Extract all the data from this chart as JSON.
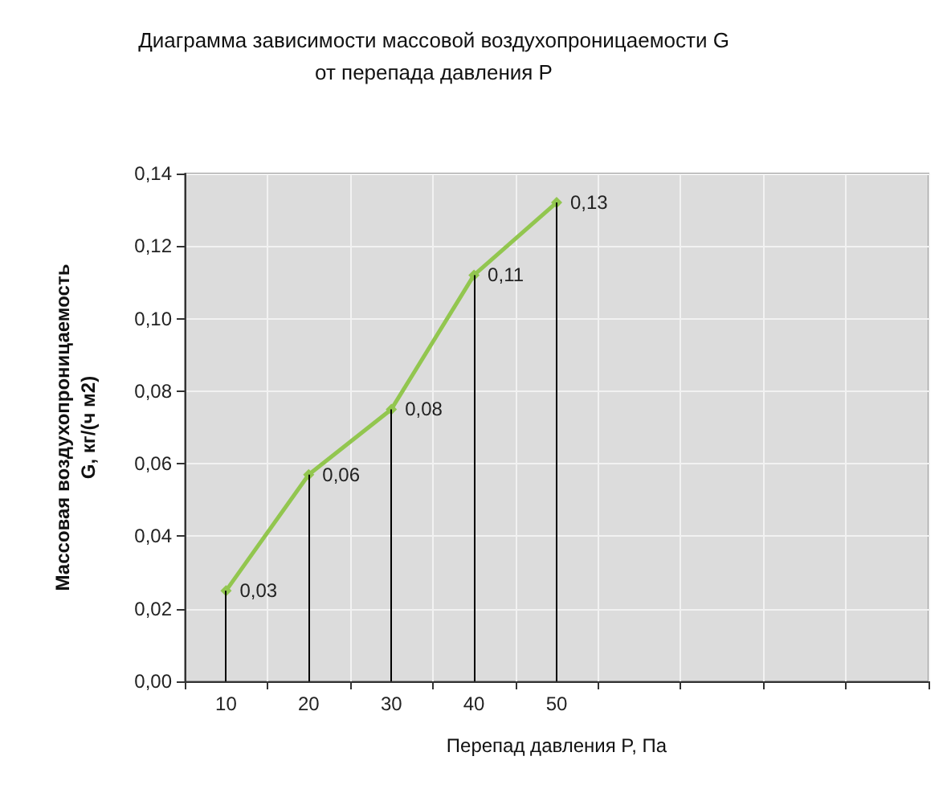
{
  "chart_data": {
    "type": "line",
    "title": "Диаграмма зависимости массовой воздухопроницаемости G\nот перепада давления P",
    "xlabel": "Перепад давления P, Па",
    "ylabel": "Массовая воздухопроницаемость\nG, кг/(ч м2)",
    "categories": [
      "10",
      "20",
      "30",
      "40",
      "50",
      null,
      null,
      null,
      null
    ],
    "series": [
      {
        "color": "#92c64f",
        "values": [
          0.025,
          0.057,
          0.075,
          0.112,
          0.132,
          null,
          null,
          null,
          null
        ],
        "value_labels": [
          "0,03",
          "0,06",
          "0,08",
          "0,11",
          "0,13",
          null,
          null,
          null,
          null
        ]
      }
    ],
    "ylim": [
      0,
      0.14
    ],
    "yticks": [
      {
        "value": 0,
        "label": "0,00"
      },
      {
        "value": 0.02,
        "label": "0,02"
      },
      {
        "value": 0.04,
        "label": "0,04"
      },
      {
        "value": 0.06,
        "label": "0,06"
      },
      {
        "value": 0.08,
        "label": "0,08"
      },
      {
        "value": 0.1,
        "label": "0,10"
      },
      {
        "value": 0.12,
        "label": "0,12"
      },
      {
        "value": 0.14,
        "label": "0,14"
      }
    ],
    "grid": true,
    "marker": "diamond",
    "line_style": "solid"
  }
}
